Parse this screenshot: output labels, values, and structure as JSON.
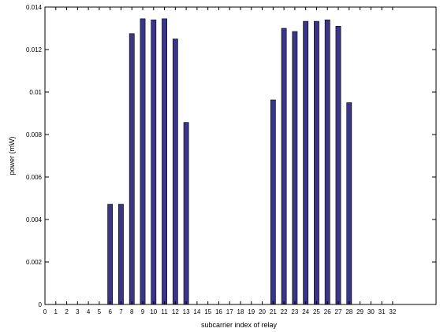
{
  "chart_data": {
    "type": "bar",
    "xlabel": "subcarrier index of relay",
    "ylabel": "power (mW)",
    "ylim": [
      0,
      0.014
    ],
    "yticks": [
      "0",
      "0.002",
      "0.004",
      "0.006",
      "0.008",
      "0.01",
      "0.012",
      "0.014"
    ],
    "xlim": [
      0,
      36
    ],
    "categories": [
      "0",
      "1",
      "2",
      "3",
      "4",
      "5",
      "6",
      "7",
      "8",
      "9",
      "10",
      "11",
      "12",
      "13",
      "14",
      "15",
      "16",
      "17",
      "18",
      "19",
      "20",
      "21",
      "22",
      "23",
      "24",
      "25",
      "26",
      "27",
      "28",
      "29",
      "30",
      "31",
      "32"
    ],
    "values": [
      0,
      0,
      0,
      0,
      0,
      0,
      0.00472,
      0.00472,
      0.01275,
      0.01345,
      0.0134,
      0.01345,
      0.0125,
      0.00857,
      0,
      0,
      0,
      0,
      0,
      0,
      0,
      0.00963,
      0.013,
      0.01285,
      0.01333,
      0.01333,
      0.0134,
      0.0131,
      0.0095,
      0,
      0,
      0,
      0
    ],
    "grid": false,
    "bar_color": "#3b3587"
  }
}
